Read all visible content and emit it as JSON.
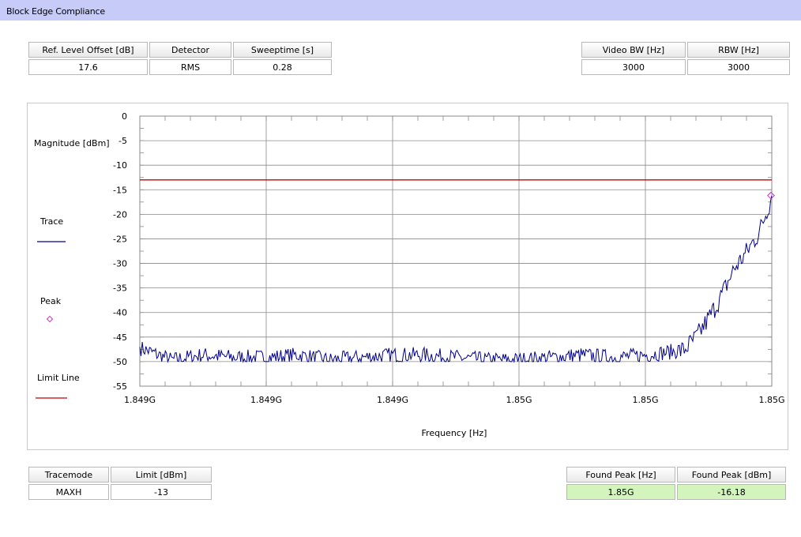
{
  "title": "Block Edge Compliance",
  "top_left_table": {
    "headers": [
      "Ref. Level Offset [dB]",
      "Detector",
      "Sweeptime [s]"
    ],
    "values": [
      "17.6",
      "RMS",
      "0.28"
    ]
  },
  "top_right_table": {
    "headers": [
      "Video BW [Hz]",
      "RBW [Hz]"
    ],
    "values": [
      "3000",
      "3000"
    ]
  },
  "bottom_left_table": {
    "headers": [
      "Tracemode",
      "Limit [dBm]"
    ],
    "values": [
      "MAXH",
      "-13"
    ]
  },
  "bottom_right_table": {
    "headers": [
      "Found Peak [Hz]",
      "Found Peak [dBm]"
    ],
    "values": [
      "1.85G",
      "-16.18"
    ]
  },
  "legend": {
    "trace_label": "Trace",
    "peak_label": "Peak",
    "limit_label": "Limit Line"
  },
  "colors": {
    "trace": "#00008b",
    "limit": "#cc0000",
    "peak": "#cc33cc",
    "title_bar": "#c6ccf7",
    "peak_table_bg": "#d3f5bd"
  },
  "chart_data": {
    "type": "line",
    "xlabel": "Frequency [Hz]",
    "ylabel": "Magnitude [dBm]",
    "ylim": [
      -55,
      0
    ],
    "yticks": [
      0,
      -5,
      -10,
      -15,
      -20,
      -25,
      -30,
      -35,
      -40,
      -45,
      -50,
      -55
    ],
    "xtick_labels": [
      "1.849G",
      "1.849G",
      "1.849G",
      "1.85G",
      "1.85G",
      "1.85G"
    ],
    "grid": true,
    "series": [
      {
        "name": "Trace",
        "color": "#00008b",
        "x_fraction": [
          0.0,
          0.05,
          0.1,
          0.15,
          0.2,
          0.25,
          0.3,
          0.35,
          0.4,
          0.45,
          0.5,
          0.55,
          0.6,
          0.65,
          0.7,
          0.75,
          0.8,
          0.83,
          0.86,
          0.88,
          0.9,
          0.92,
          0.94,
          0.96,
          0.98,
          1.0
        ],
        "y": [
          -47,
          -49.5,
          -48.5,
          -49,
          -49,
          -48.5,
          -49.5,
          -49,
          -48.5,
          -48.5,
          -49,
          -49.5,
          -49.5,
          -49,
          -48.5,
          -49,
          -48.5,
          -48,
          -47.5,
          -45,
          -41,
          -36.5,
          -31,
          -27.5,
          -23.5,
          -16.2
        ]
      },
      {
        "name": "Limit Line",
        "color": "#cc0000",
        "y_constant": -13
      }
    ],
    "peak": {
      "label": "Peak",
      "x": "1.85G",
      "y": -16.18
    }
  }
}
